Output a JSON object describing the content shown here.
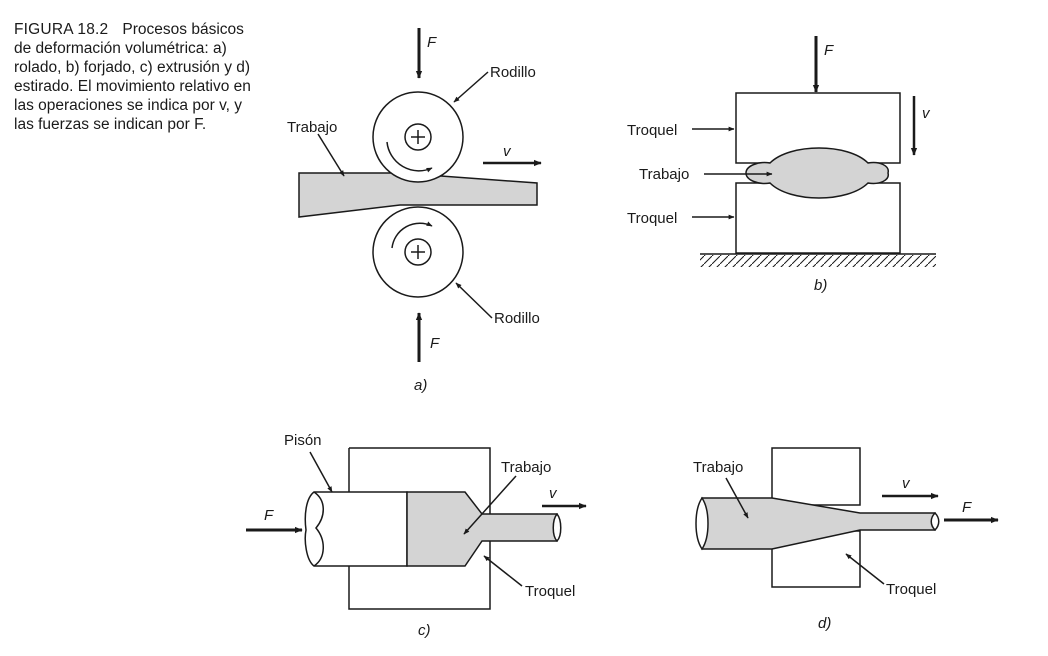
{
  "caption": {
    "figure_label": "FIGURA 18.2",
    "title": "Procesos",
    "body": "básicos de deformación volumétrica: a) rolado, b) forjado, c) extrusión y d) estirado. El movimiento relativo en las operaciones se indica por v, y las fuerzas se indican por F."
  },
  "panel_a": {
    "force": "F",
    "velocity": "v",
    "roll_top": "Rodillo",
    "roll_bottom": "Rodillo",
    "work": "Trabajo",
    "tag": "a)"
  },
  "panel_b": {
    "force": "F",
    "velocity": "v",
    "die_top": "Troquel",
    "work": "Trabajo",
    "die_bottom": "Troquel",
    "tag": "b)"
  },
  "panel_c": {
    "ram": "Pisón",
    "work": "Trabajo",
    "velocity": "v",
    "force": "F",
    "die": "Troquel",
    "tag": "c)"
  },
  "panel_d": {
    "work": "Trabajo",
    "velocity": "v",
    "force": "F",
    "die": "Troquel",
    "tag": "d)"
  },
  "colors": {
    "work_fill": "#d4d4d4",
    "stroke": "#1a1a1a"
  }
}
